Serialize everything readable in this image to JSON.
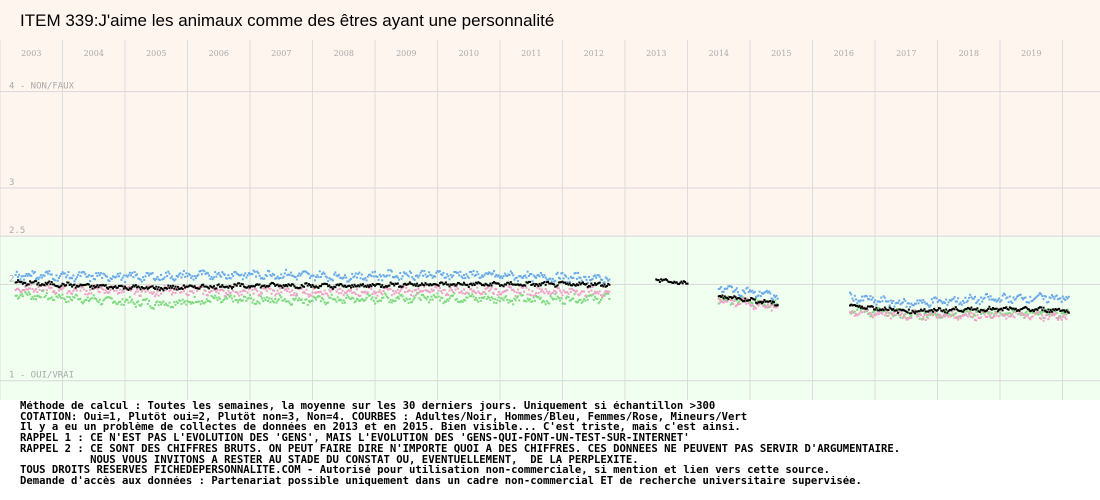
{
  "title": "ITEM 339:J'aime les animaux comme des êtres ayant une personnalité",
  "chart_data": {
    "type": "scatter",
    "title": "ITEM 339:J'aime les animaux comme des êtres ayant une personnalité",
    "x_tick_labels": [
      "2003",
      "2004",
      "2005",
      "2006",
      "2007",
      "2008",
      "2009",
      "2010",
      "2011",
      "2012",
      "2013",
      "2014",
      "2015",
      "2016",
      "2017",
      "2018",
      "2019"
    ],
    "xlim": [
      2002.5,
      2020.1
    ],
    "ylim": [
      0.8,
      4.95
    ],
    "y_ticks": [
      {
        "value": 4,
        "label": "4 - NON/FAUX"
      },
      {
        "value": 3,
        "label": "3"
      },
      {
        "value": 2.5,
        "label": "2.5"
      },
      {
        "value": 2,
        "label": "2"
      },
      {
        "value": 1,
        "label": "1 - OUI/VRAI"
      }
    ],
    "grid": true,
    "bands": [
      {
        "from": 2.5,
        "to": 4.95,
        "color": "#fff5ef"
      },
      {
        "from": 0.8,
        "to": 2.5,
        "color": "#f0fff0"
      }
    ],
    "segments": [
      [
        2002.75,
        2012.25
      ],
      [
        2013.0,
        2013.5
      ],
      [
        2014.0,
        2014.95
      ],
      [
        2016.1,
        2019.6
      ]
    ],
    "series": [
      {
        "name": "Adultes",
        "color": "#000000",
        "values": [
          [
            2002.75,
            2.02
          ],
          [
            2004.0,
            1.98
          ],
          [
            2005.0,
            1.96
          ],
          [
            2006.0,
            1.98
          ],
          [
            2007.0,
            1.99
          ],
          [
            2008.0,
            1.98
          ],
          [
            2009.0,
            2.0
          ],
          [
            2010.0,
            2.0
          ],
          [
            2011.0,
            2.0
          ],
          [
            2012.25,
            2.0
          ],
          [
            2013.0,
            2.05
          ],
          [
            2013.5,
            2.0
          ],
          [
            2014.0,
            1.88
          ],
          [
            2014.95,
            1.8
          ],
          [
            2016.1,
            1.78
          ],
          [
            2017.0,
            1.72
          ],
          [
            2018.0,
            1.74
          ],
          [
            2019.0,
            1.74
          ],
          [
            2019.6,
            1.73
          ]
        ]
      },
      {
        "name": "Hommes",
        "color": "#6aa8e8",
        "values": [
          [
            2002.75,
            2.1
          ],
          [
            2004.0,
            2.08
          ],
          [
            2005.0,
            2.08
          ],
          [
            2006.0,
            2.1
          ],
          [
            2007.0,
            2.1
          ],
          [
            2008.0,
            2.08
          ],
          [
            2009.0,
            2.1
          ],
          [
            2010.0,
            2.1
          ],
          [
            2011.0,
            2.08
          ],
          [
            2012.25,
            2.06
          ],
          [
            2014.0,
            1.96
          ],
          [
            2014.95,
            1.88
          ],
          [
            2016.1,
            1.86
          ],
          [
            2017.0,
            1.8
          ],
          [
            2018.0,
            1.84
          ],
          [
            2019.0,
            1.86
          ],
          [
            2019.6,
            1.86
          ]
        ]
      },
      {
        "name": "Femmes",
        "color": "#f0a0c8",
        "values": [
          [
            2002.75,
            1.96
          ],
          [
            2004.0,
            1.94
          ],
          [
            2005.0,
            1.93
          ],
          [
            2006.0,
            1.93
          ],
          [
            2007.0,
            1.93
          ],
          [
            2008.0,
            1.92
          ],
          [
            2009.0,
            1.93
          ],
          [
            2010.0,
            1.94
          ],
          [
            2011.0,
            1.93
          ],
          [
            2012.25,
            1.92
          ],
          [
            2014.0,
            1.84
          ],
          [
            2014.95,
            1.76
          ],
          [
            2016.1,
            1.72
          ],
          [
            2017.0,
            1.68
          ],
          [
            2018.0,
            1.68
          ],
          [
            2019.0,
            1.68
          ],
          [
            2019.6,
            1.66
          ]
        ]
      },
      {
        "name": "Mineurs",
        "color": "#80d880",
        "values": [
          [
            2002.75,
            1.9
          ],
          [
            2004.0,
            1.84
          ],
          [
            2005.0,
            1.8
          ],
          [
            2006.0,
            1.84
          ],
          [
            2007.0,
            1.84
          ],
          [
            2008.0,
            1.84
          ],
          [
            2009.0,
            1.86
          ],
          [
            2010.0,
            1.86
          ],
          [
            2011.0,
            1.84
          ],
          [
            2012.25,
            1.86
          ],
          [
            2014.0,
            1.84
          ],
          [
            2014.95,
            1.8
          ],
          [
            2016.1,
            1.74
          ],
          [
            2017.0,
            1.68
          ],
          [
            2018.0,
            1.7
          ],
          [
            2019.0,
            1.7
          ],
          [
            2019.6,
            1.7
          ]
        ]
      }
    ]
  },
  "notes": [
    "Méthode de calcul : Toutes les semaines, la moyenne sur les 30 derniers jours. Uniquement si échantillon >300",
    "COTATION: Oui=1, Plutôt oui=2, Plutôt non=3, Non=4. COURBES : Adultes/Noir, Hommes/Bleu, Femmes/Rose, Mineurs/Vert",
    "Il y a eu un problème de collectes de données en 2013 et en 2015. Bien visible... C'est triste, mais c'est ainsi.",
    "RAPPEL 1 : CE N'EST PAS L'EVOLUTION DES 'GENS', MAIS L'EVOLUTION DES 'GENS-QUI-FONT-UN-TEST-SUR-INTERNET'",
    "RAPPEL 2 : CE SONT DES CHIFFRES BRUTS. ON PEUT FAIRE DIRE N'IMPORTE QUOI A DES CHIFFRES. CES DONNEES NE PEUVENT PAS SERVIR D'ARGUMENTAIRE.",
    "           NOUS VOUS INVITONS A RESTER AU STADE DU CONSTAT OU, EVENTUELLEMENT,  DE LA PERPLEXITE.",
    "TOUS DROITS RESERVES FICHEDEPERSONNALITE.COM - Autorisé pour utilisation non-commerciale, si mention et lien vers cette source.",
    "Demande d'accès aux données : Partenariat possible uniquement dans un cadre non-commercial ET de recherche universitaire supervisée."
  ]
}
